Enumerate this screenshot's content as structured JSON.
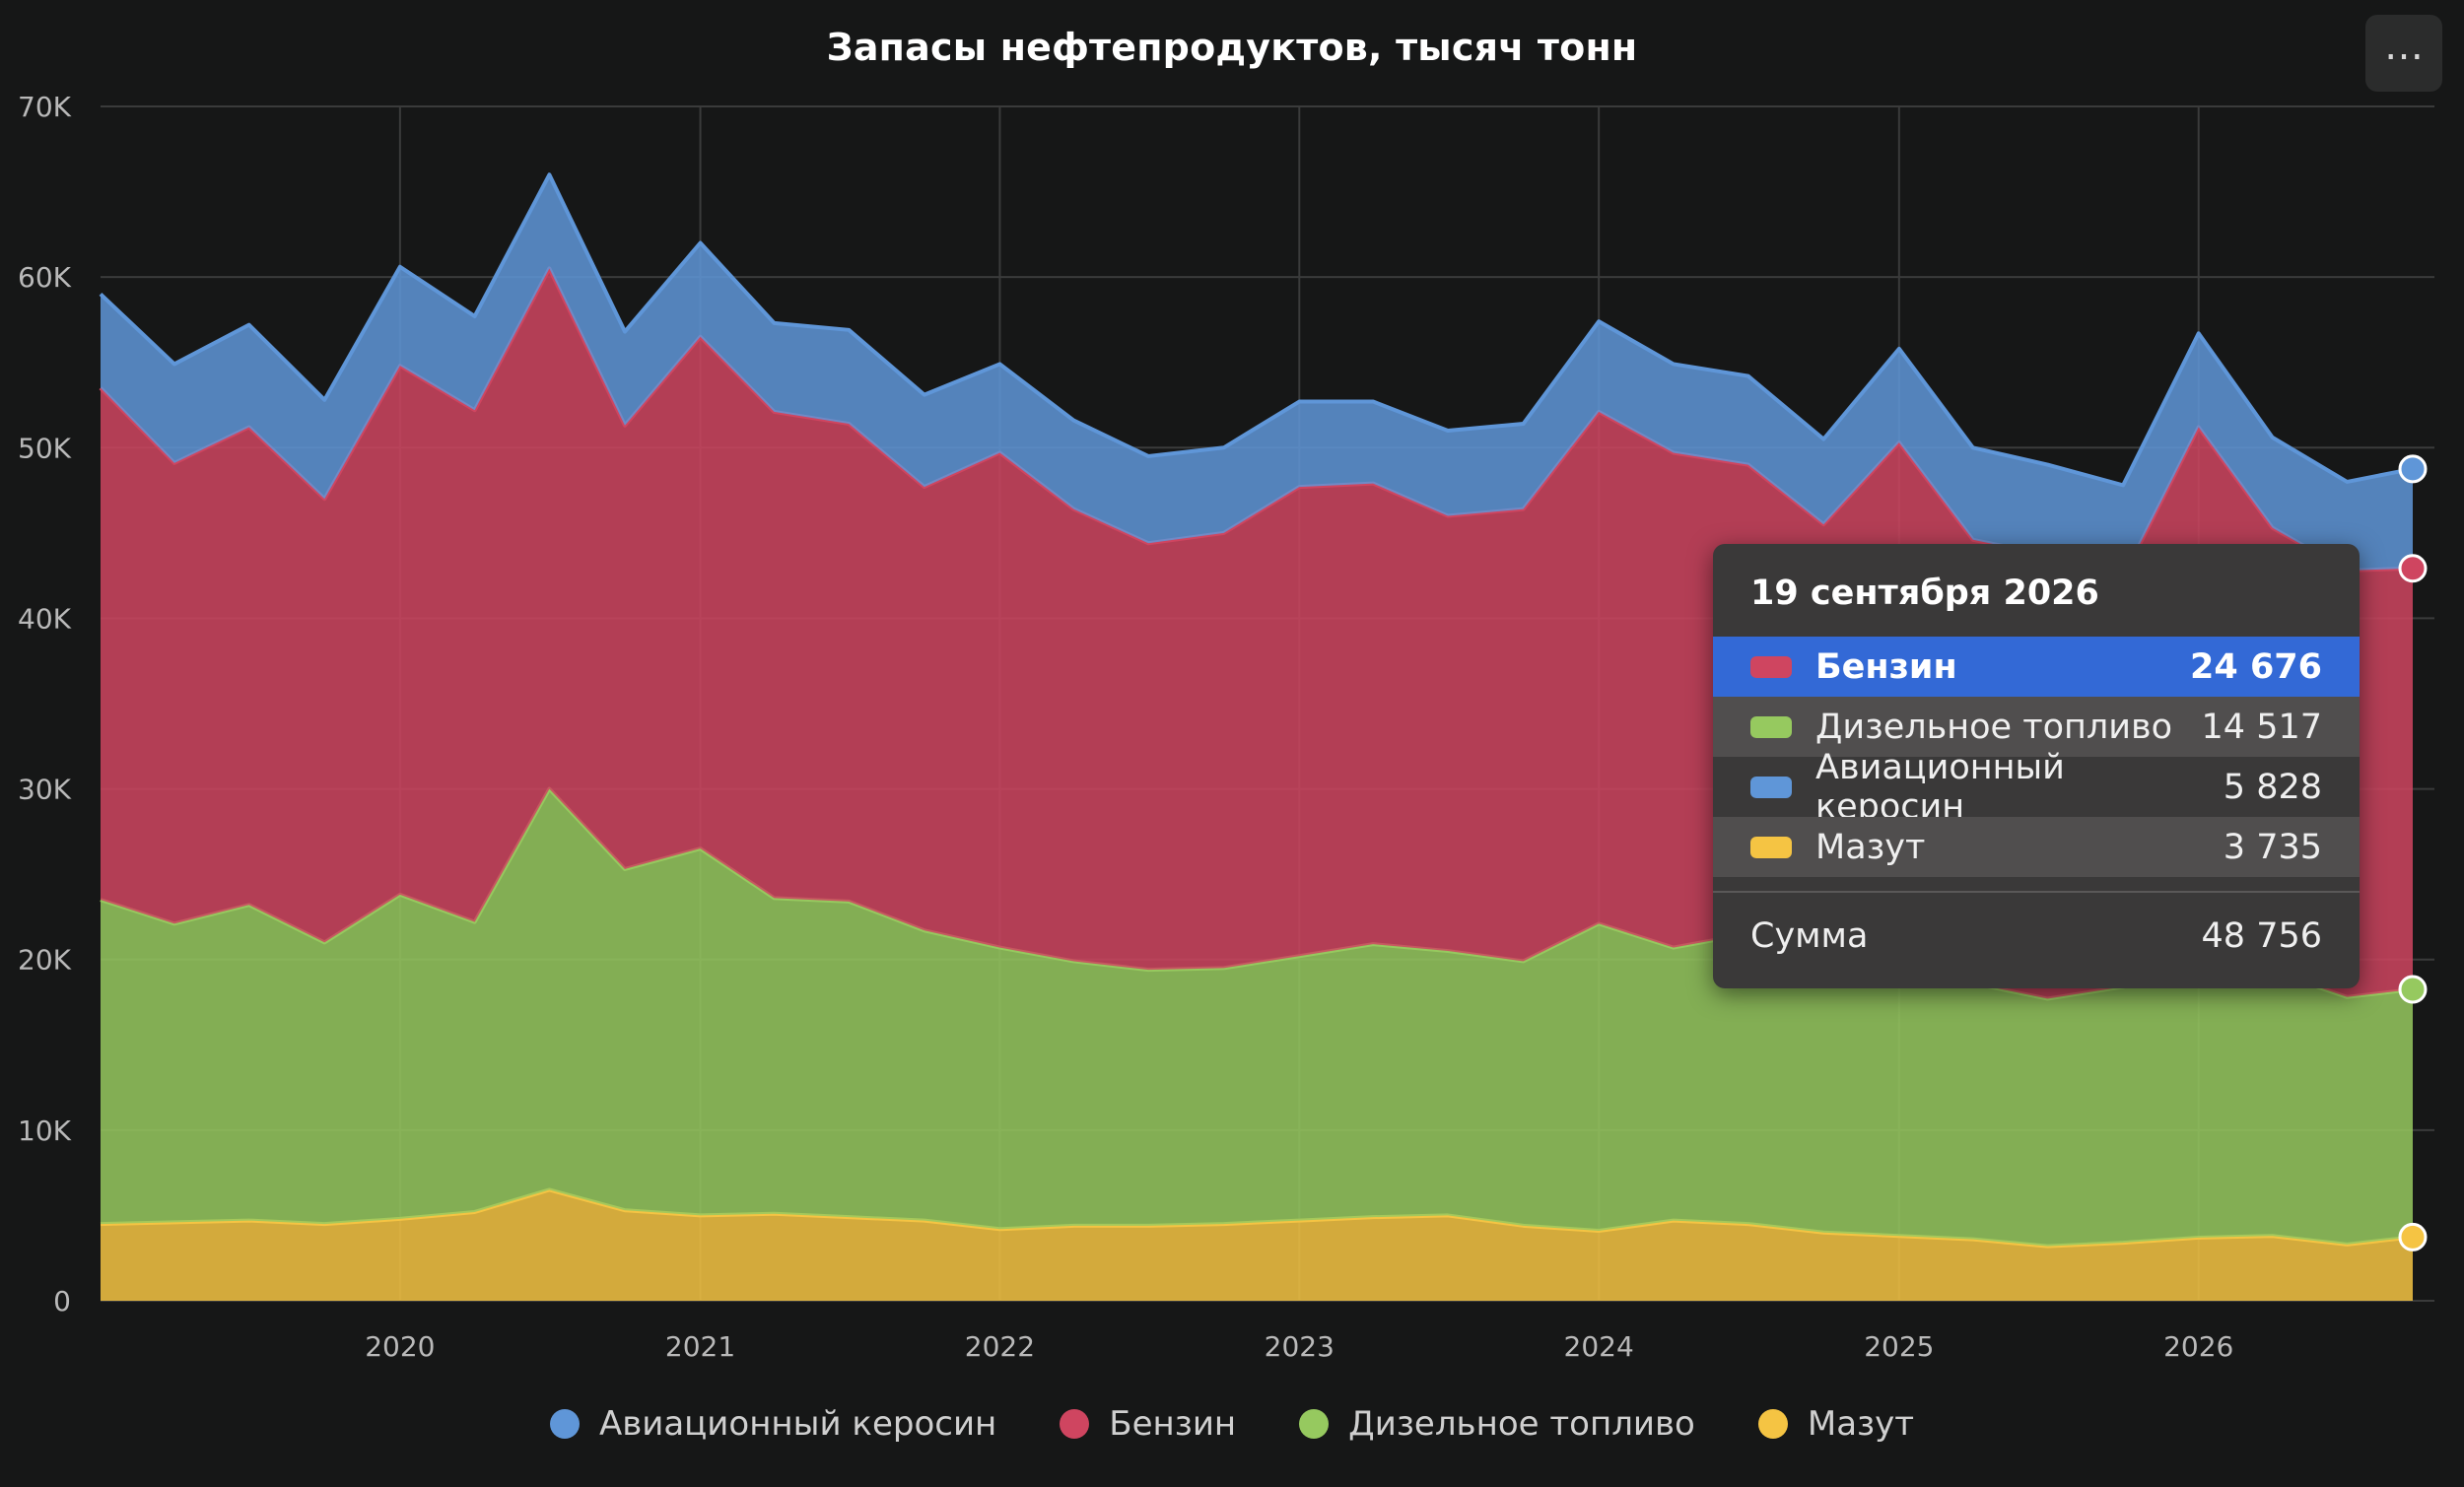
{
  "chart_data": {
    "type": "area",
    "stacked": true,
    "title": "Запасы нефтепродуктов, тысяч тонн",
    "ylim": [
      0,
      70000
    ],
    "y_ticks": [
      "0",
      "10K",
      "20K",
      "30K",
      "40K",
      "50K",
      "60K",
      "70K"
    ],
    "x_ticks": [
      "2020",
      "2021",
      "2022",
      "2023",
      "2024",
      "2025",
      "2026"
    ],
    "x_range": [
      "2019-01-01",
      "2026-09-19"
    ],
    "grid": true,
    "legend_position": "bottom",
    "x": [
      "2019-01",
      "2019-04",
      "2019-07",
      "2019-10",
      "2020-01",
      "2020-04",
      "2020-07",
      "2020-10",
      "2021-01",
      "2021-04",
      "2021-07",
      "2021-10",
      "2022-01",
      "2022-04",
      "2022-07",
      "2022-10",
      "2023-01",
      "2023-04",
      "2023-07",
      "2023-10",
      "2024-01",
      "2024-04",
      "2024-07",
      "2024-10",
      "2025-01",
      "2025-04",
      "2025-07",
      "2025-10",
      "2026-01",
      "2026-04",
      "2026-07",
      "2026-09-19"
    ],
    "series": [
      {
        "name": "Мазут",
        "color": "#f5c443",
        "values": [
          4500,
          4600,
          4700,
          4500,
          4800,
          5200,
          6500,
          5300,
          5000,
          5100,
          4900,
          4700,
          4200,
          4400,
          4400,
          4500,
          4700,
          4900,
          5000,
          4400,
          4100,
          4700,
          4500,
          4000,
          3800,
          3600,
          3200,
          3400,
          3700,
          3800,
          3300,
          3735
        ]
      },
      {
        "name": "Дизельное топливо",
        "color": "#96c95f",
        "values": [
          19000,
          17500,
          18500,
          16500,
          19000,
          17000,
          23500,
          20000,
          21500,
          18500,
          18500,
          17000,
          16500,
          15500,
          15000,
          15000,
          15500,
          16000,
          15500,
          15500,
          18000,
          16000,
          17000,
          16500,
          16500,
          15000,
          14500,
          15000,
          15500,
          15500,
          14500,
          14517
        ]
      },
      {
        "name": "Бензин",
        "color": "#cf4560",
        "values": [
          30000,
          27000,
          28000,
          26000,
          31000,
          30000,
          30500,
          26000,
          30000,
          28500,
          28000,
          26000,
          29000,
          26500,
          25000,
          25500,
          27500,
          27000,
          25500,
          26500,
          30000,
          29000,
          27500,
          25000,
          30000,
          26000,
          26000,
          24000,
          32000,
          26000,
          25000,
          24676
        ]
      },
      {
        "name": "Авиационный керосин",
        "color": "#5f96d8",
        "values": [
          5500,
          5800,
          6000,
          5800,
          5800,
          5500,
          5500,
          5500,
          5500,
          5200,
          5500,
          5400,
          5200,
          5200,
          5100,
          5000,
          5000,
          4800,
          5000,
          5000,
          5300,
          5200,
          5200,
          5000,
          5500,
          5400,
          5300,
          5400,
          5500,
          5300,
          5200,
          5828
        ]
      }
    ]
  },
  "legend": [
    {
      "label": "Авиационный керосин",
      "color": "#5f96d8"
    },
    {
      "label": "Бензин",
      "color": "#cf4560"
    },
    {
      "label": "Дизельное топливо",
      "color": "#96c95f"
    },
    {
      "label": "Мазут",
      "color": "#f5c443"
    }
  ],
  "tooltip": {
    "date": "19 сентября 2026",
    "rows": [
      {
        "name": "Бензин",
        "value": "24 676",
        "color": "#cf4560"
      },
      {
        "name": "Дизельное топливо",
        "value": "14 517",
        "color": "#96c95f"
      },
      {
        "name": "Авиационный керосин",
        "value": "5 828",
        "color": "#5f96d8"
      },
      {
        "name": "Мазут",
        "value": "3 735",
        "color": "#f5c443"
      }
    ],
    "sum_label": "Сумма",
    "sum_value": "48 756"
  },
  "menu_icon": "ellipsis-icon"
}
